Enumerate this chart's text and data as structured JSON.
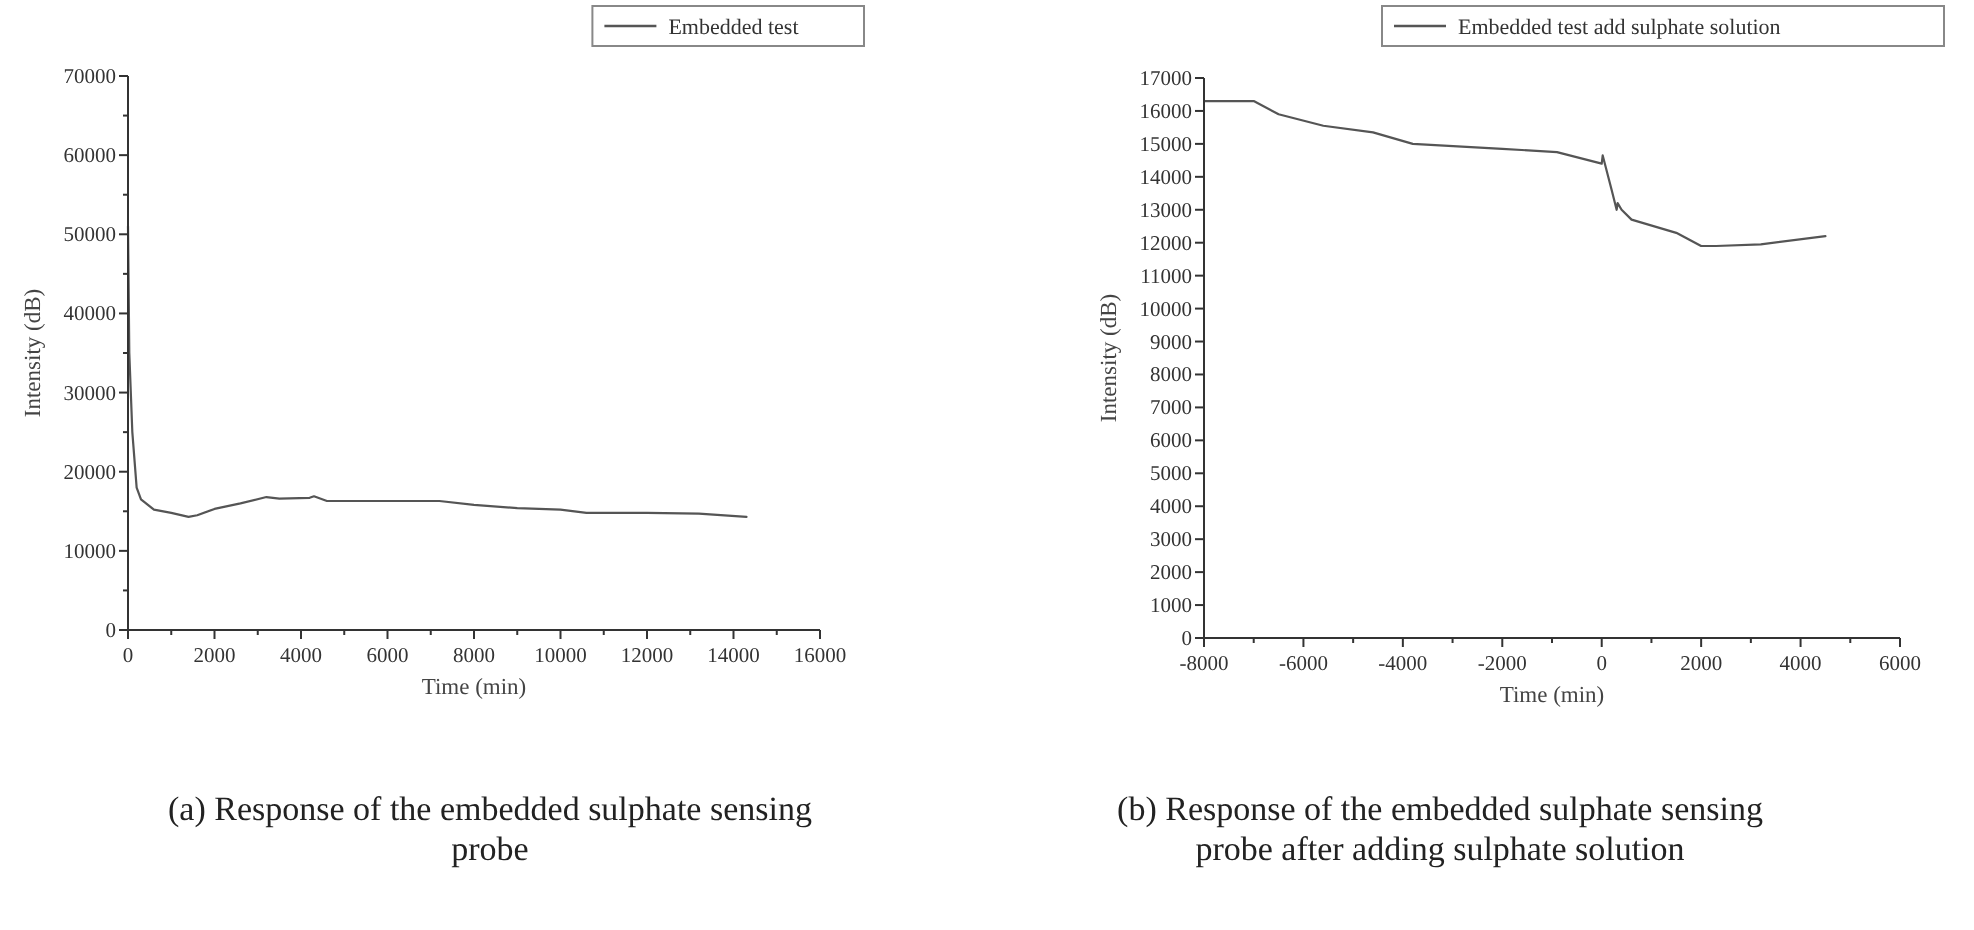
{
  "chart_data": [
    {
      "type": "line",
      "xlabel": "Time (min)",
      "ylabel": "Intensity (dB)",
      "xlim": [
        0,
        16000
      ],
      "ylim": [
        0,
        70000
      ],
      "xticks": [
        0,
        {
          "value": 1000,
          "label": null
        },
        2000,
        {
          "value": 3000,
          "label": null
        },
        4000,
        {
          "value": 5000,
          "label": null
        },
        6000,
        {
          "value": 7000,
          "label": null
        },
        8000,
        {
          "value": 9000,
          "label": null
        },
        10000,
        {
          "value": 11000,
          "label": null
        },
        12000,
        {
          "value": 13000,
          "label": null
        },
        14000,
        {
          "value": 15000,
          "label": null
        },
        16000
      ],
      "yticks": [
        0,
        {
          "value": 5000,
          "label": null
        },
        10000,
        {
          "value": 15000,
          "label": null
        },
        20000,
        {
          "value": 25000,
          "label": null
        },
        30000,
        {
          "value": 35000,
          "label": null
        },
        40000,
        {
          "value": 45000,
          "label": null
        },
        50000,
        {
          "value": 55000,
          "label": null
        },
        60000,
        {
          "value": 65000,
          "label": null
        },
        70000
      ],
      "grid": false,
      "legend": "top right",
      "line_style": "solid",
      "annotations": [
        "(a) Response of the embedded sulphate sensing probe"
      ],
      "series": [
        {
          "name": "Embedded test",
          "color": "#555555",
          "x": [
            0,
            30,
            100,
            200,
            300,
            600,
            1000,
            1400,
            1600,
            2000,
            2600,
            3200,
            3500,
            4200,
            4300,
            4600,
            6000,
            7200,
            8000,
            9000,
            10000,
            10600,
            12000,
            13200,
            14300
          ],
          "values": [
            51000,
            35000,
            25000,
            18000,
            16500,
            15200,
            14800,
            14300,
            14500,
            15300,
            16000,
            16800,
            16600,
            16700,
            16900,
            16300,
            16300,
            16300,
            15800,
            15400,
            15200,
            14800,
            14800,
            14700,
            14300
          ]
        }
      ]
    },
    {
      "type": "line",
      "xlabel": "Time (min)",
      "ylabel": "Intensity (dB)",
      "xlim": [
        -8000,
        6000
      ],
      "ylim": [
        0,
        17000
      ],
      "xticks": [
        -8000,
        {
          "value": -7000,
          "label": null
        },
        -6000,
        {
          "value": -5000,
          "label": null
        },
        -4000,
        {
          "value": -3000,
          "label": null
        },
        -2000,
        {
          "value": -1000,
          "label": null
        },
        0,
        {
          "value": 1000,
          "label": null
        },
        2000,
        {
          "value": 3000,
          "label": null
        },
        4000,
        {
          "value": 5000,
          "label": null
        },
        6000
      ],
      "yticks": [
        0,
        1000,
        2000,
        3000,
        4000,
        5000,
        6000,
        7000,
        8000,
        9000,
        10000,
        11000,
        12000,
        13000,
        14000,
        15000,
        16000,
        17000
      ],
      "grid": false,
      "legend": "top right",
      "line_style": "solid",
      "annotations": [
        "(b) Response of the embedded sulphate sensing probe after adding sulphate solution"
      ],
      "series": [
        {
          "name": "Embedded test add sulphate solution",
          "color": "#555555",
          "x": [
            -8000,
            -7000,
            -6500,
            -5600,
            -4600,
            -3800,
            -2000,
            -900,
            0,
            20,
            80,
            200,
            300,
            320,
            400,
            600,
            1500,
            2000,
            2300,
            3200,
            4500
          ],
          "values": [
            16300,
            16300,
            15900,
            15550,
            15350,
            15000,
            14850,
            14750,
            14400,
            14650,
            14300,
            13600,
            13000,
            13200,
            13000,
            12700,
            12300,
            11900,
            11900,
            11950,
            12200
          ]
        }
      ]
    }
  ]
}
